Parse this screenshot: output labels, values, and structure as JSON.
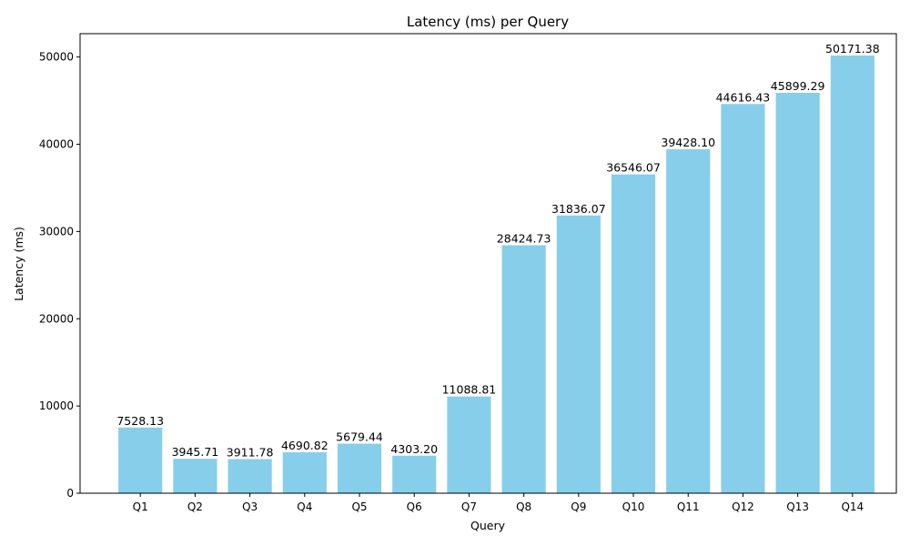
{
  "chart_data": {
    "type": "bar",
    "title": "Latency (ms) per Query",
    "xlabel": "Query",
    "ylabel": "Latency (ms)",
    "categories": [
      "Q1",
      "Q2",
      "Q3",
      "Q4",
      "Q5",
      "Q6",
      "Q7",
      "Q8",
      "Q9",
      "Q10",
      "Q11",
      "Q12",
      "Q13",
      "Q14"
    ],
    "values": [
      7528.13,
      3945.71,
      3911.78,
      4690.82,
      5679.44,
      4303.2,
      11088.81,
      28424.73,
      31836.07,
      36546.07,
      39428.1,
      44616.43,
      45899.29,
      50171.38
    ],
    "value_labels": [
      "7528.13",
      "3945.71",
      "3911.78",
      "4690.82",
      "5679.44",
      "4303.20",
      "11088.81",
      "28424.73",
      "31836.07",
      "36546.07",
      "39428.10",
      "44616.43",
      "45899.29",
      "50171.38"
    ],
    "yticks": [
      0,
      10000,
      20000,
      30000,
      40000,
      50000
    ],
    "ytick_labels": [
      "0",
      "10000",
      "20000",
      "30000",
      "40000",
      "50000"
    ],
    "ylim": [
      0,
      52680
    ],
    "bar_color": "#87CEEB",
    "grid": false,
    "legend": "none"
  }
}
